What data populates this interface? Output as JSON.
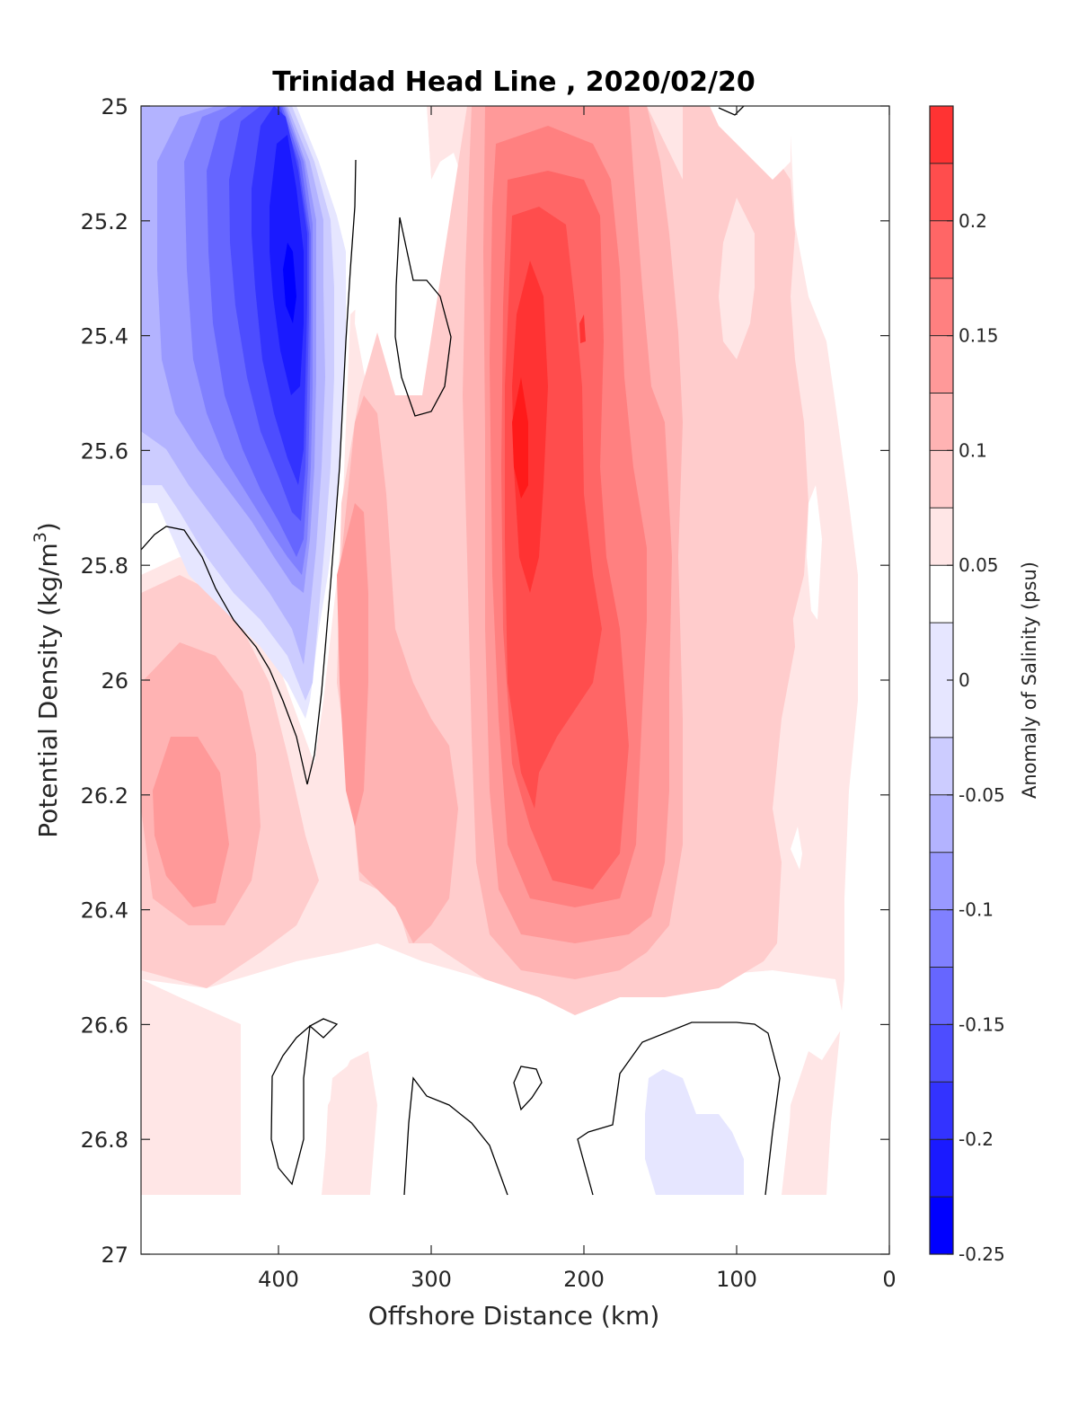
{
  "chart_data": {
    "type": "heatmap",
    "subtype": "filled-contour",
    "title": "Trinidad Head Line , 2020/02/20",
    "xlabel": "Offshore Distance (km)",
    "ylabel_main": "Potential Density (kg/m",
    "ylabel_sup": "3",
    "ylabel_close": ")",
    "colorbar_label": "Anomaly of Salinity (psu)",
    "xlim": [
      490,
      0
    ],
    "ylim": [
      25,
      27
    ],
    "x_reversed": true,
    "y_reversed": true,
    "x_ticks": [
      400,
      300,
      200,
      100,
      0
    ],
    "x_tick_labels": [
      "400",
      "300",
      "200",
      "100",
      "0"
    ],
    "y_ticks": [
      25,
      25.2,
      25.4,
      25.6,
      25.8,
      26,
      26.2,
      26.4,
      26.6,
      26.8,
      27
    ],
    "y_tick_labels": [
      "25",
      "25.2",
      "25.4",
      "25.6",
      "25.8",
      "26",
      "26.2",
      "26.4",
      "26.6",
      "26.8",
      "27"
    ],
    "colorbar": {
      "range": [
        -0.25,
        0.25
      ],
      "ticks": [
        0.2,
        0.15,
        0.1,
        0.05,
        0,
        -0.05,
        -0.1,
        -0.15,
        -0.2,
        -0.25
      ],
      "tick_labels": [
        "0.2",
        "0.15",
        "0.1",
        "0.05",
        "0",
        "-0.05",
        "-0.1",
        "-0.15",
        "-0.2",
        "-0.25"
      ],
      "levels": [
        -0.25,
        -0.225,
        -0.2,
        -0.175,
        -0.15,
        -0.125,
        -0.1,
        -0.075,
        -0.05,
        -0.025,
        0.025,
        0.05,
        0.075,
        0.1,
        0.125,
        0.15,
        0.175,
        0.2,
        0.225,
        0.25
      ],
      "colors": [
        "#0000ff",
        "#1a1aff",
        "#3333ff",
        "#4d4dff",
        "#6666ff",
        "#8080ff",
        "#9999ff",
        "#b3b3ff",
        "#ccccff",
        "#e6e6ff",
        "#ffffff",
        "#ffe6e6",
        "#ffcccc",
        "#ffb3b3",
        "#ff9999",
        "#ff8080",
        "#ff6666",
        "#ff4d4d",
        "#ff3333",
        "#ff1a1a",
        "#ff0000"
      ]
    },
    "zero_contour_color": "#000000",
    "grid": false,
    "features": [
      {
        "name": "fresh core",
        "x_center": 390,
        "y_center": 25.3,
        "min_value": -0.2
      },
      {
        "name": "saline core",
        "x_center": 240,
        "y_center": 25.6,
        "max_value": 0.2
      },
      {
        "name": "deep fresh patch",
        "x_center": 110,
        "y_center": 26.85,
        "min_value": -0.05
      }
    ]
  }
}
